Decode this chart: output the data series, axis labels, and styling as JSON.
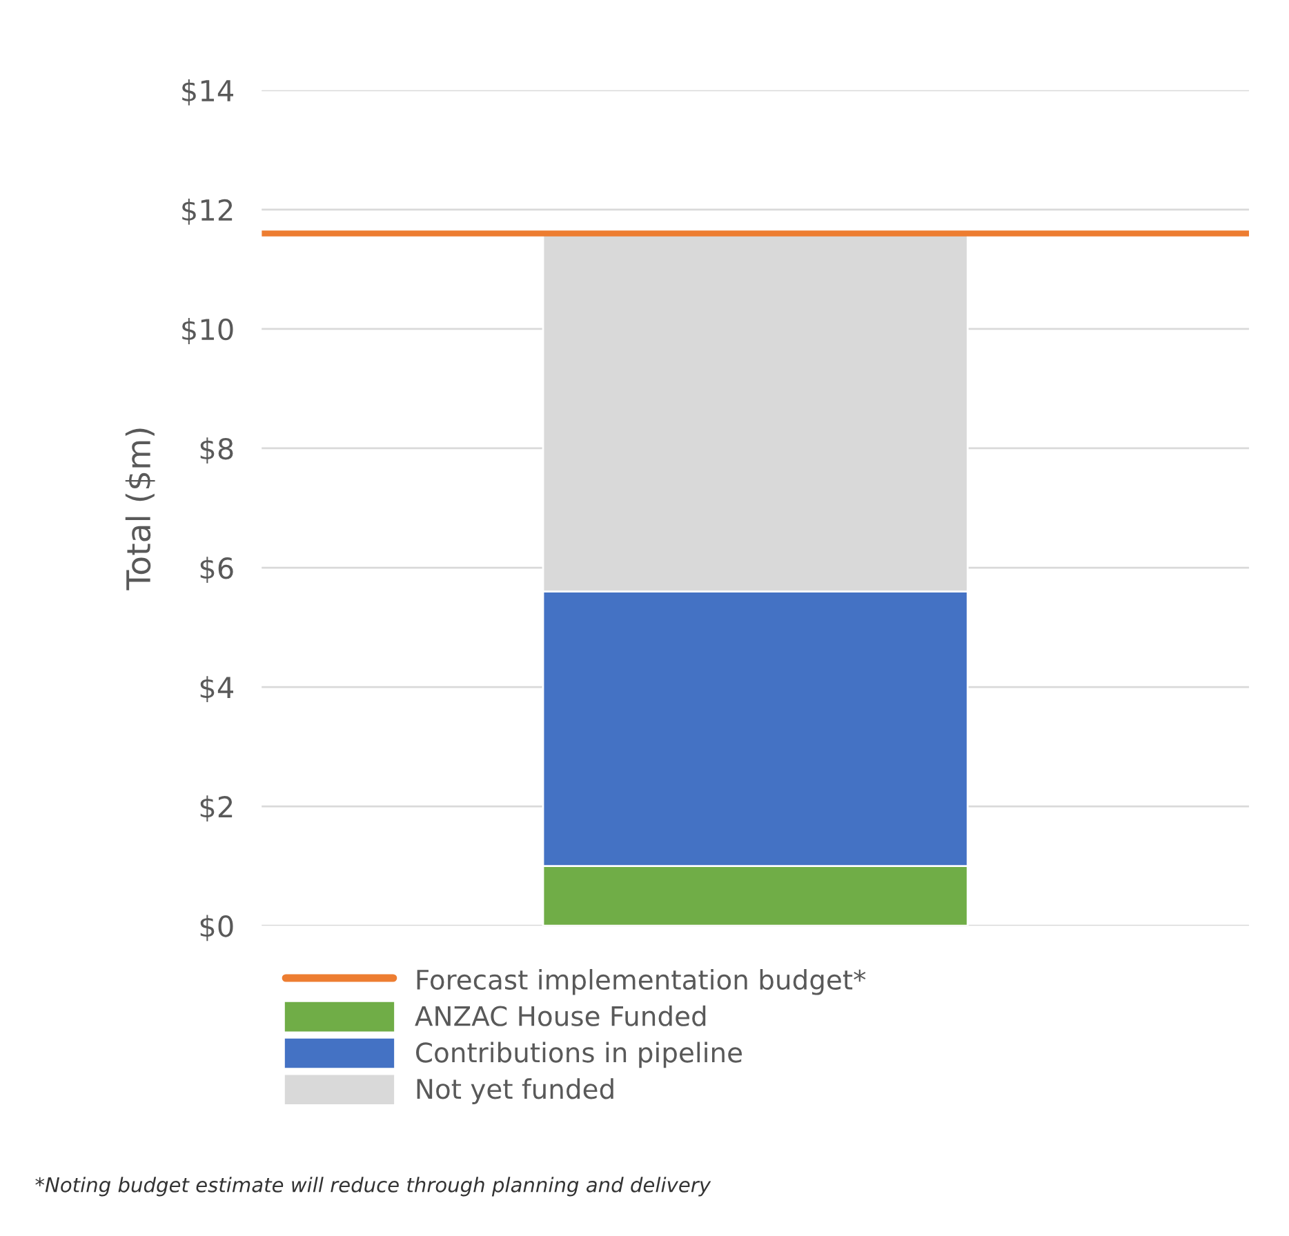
{
  "chart_data": {
    "type": "bar",
    "stacked": true,
    "categories": [
      null
    ],
    "ylabel": "Total ($m)",
    "series": [
      {
        "name": "ANZAC House Funded",
        "color": "#70ad47",
        "values": [
          1.0
        ]
      },
      {
        "name": "Contributions in pipeline",
        "color": "#4472c4",
        "values": [
          4.6
        ]
      },
      {
        "name": "Not yet funded",
        "color": "#d9d9d9",
        "values": [
          6.0
        ]
      }
    ],
    "ref_lines": [
      {
        "axis": "y",
        "value": 11.6,
        "label": "Forecast implementation budget*",
        "color": "#ed7d31",
        "line_style": "solid"
      }
    ],
    "ylim": [
      0,
      14
    ],
    "yticks": [
      {
        "value": 0,
        "label": "$0"
      },
      {
        "value": 2,
        "label": "$2"
      },
      {
        "value": 4,
        "label": "$4"
      },
      {
        "value": 6,
        "label": "$6"
      },
      {
        "value": 8,
        "label": "$8"
      },
      {
        "value": 10,
        "label": "$10"
      },
      {
        "value": 12,
        "label": "$12"
      },
      {
        "value": 14,
        "label": "$14"
      }
    ],
    "grid": "y",
    "legend": "bottom",
    "annotations": [
      "*Noting budget estimate will reduce through planning and delivery"
    ]
  }
}
